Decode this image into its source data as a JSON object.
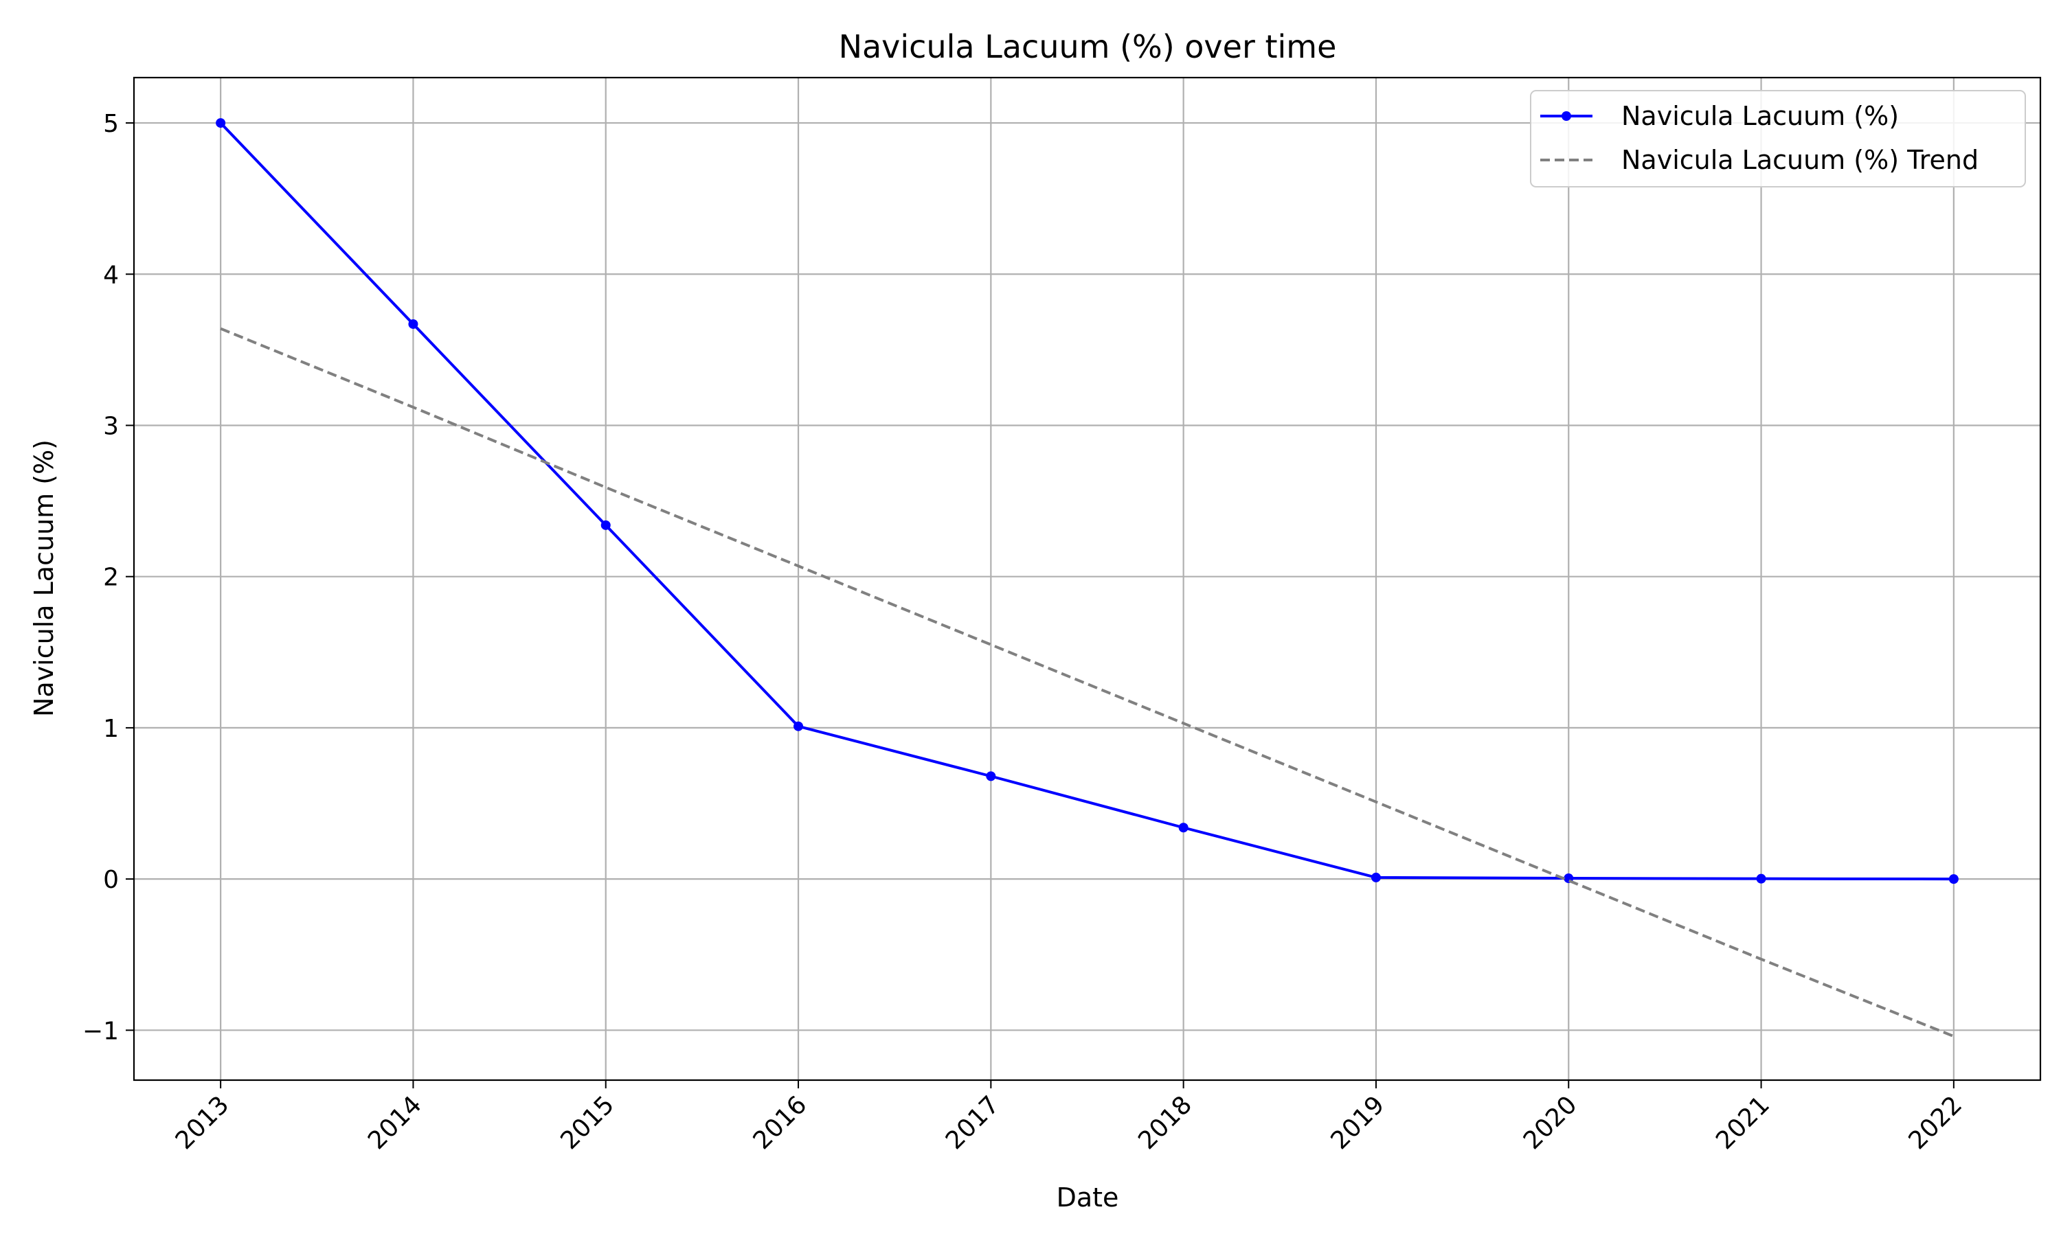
{
  "chart_data": {
    "type": "line",
    "title": "Navicula Lacuum (%) over time",
    "xlabel": "Date",
    "ylabel": "Navicula Lacuum (%)",
    "x": [
      "2013",
      "2014",
      "2015",
      "2016",
      "2017",
      "2018",
      "2019",
      "2020",
      "2021",
      "2022"
    ],
    "xlim": [
      2012.55,
      2022.45
    ],
    "ylim": [
      -1.33,
      5.3
    ],
    "y_ticks": [
      -1,
      0,
      1,
      2,
      3,
      4,
      5
    ],
    "y_tick_labels": [
      "−1",
      "0",
      "1",
      "2",
      "3",
      "4",
      "5"
    ],
    "grid": true,
    "legend_position": "top-right",
    "series": [
      {
        "name": "Navicula Lacuum (%)",
        "color": "#0000ff",
        "style": "solid",
        "marker": "circle",
        "values": [
          5.0,
          3.67,
          2.34,
          1.01,
          0.68,
          0.34,
          0.01,
          0.005,
          0.002,
          0.0
        ]
      },
      {
        "name": "Navicula Lacuum (%) Trend",
        "color": "#808080",
        "style": "dashed",
        "marker": "none",
        "values": [
          3.64,
          3.12,
          2.59,
          2.07,
          1.55,
          1.03,
          0.51,
          -0.01,
          -0.53,
          -1.04
        ]
      }
    ]
  }
}
